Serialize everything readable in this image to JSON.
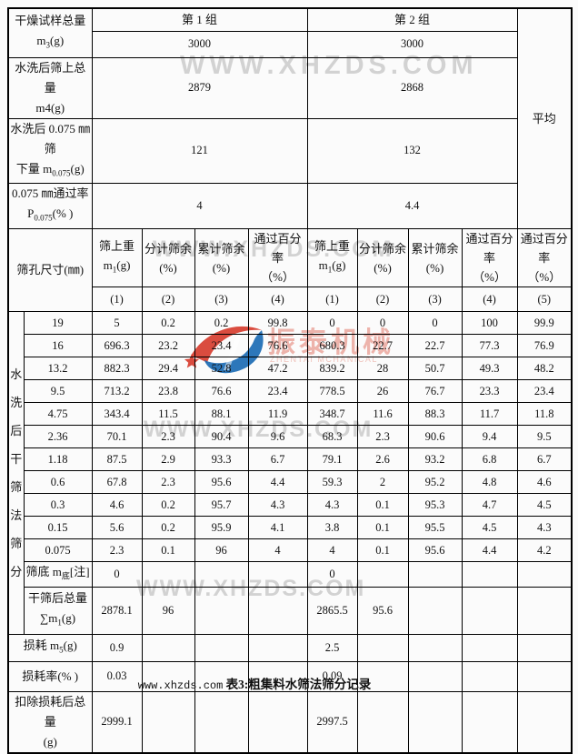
{
  "watermark": {
    "text": "WWW.XHZDS.COM",
    "logo_cn": "振泰机械",
    "logo_en": "ZHENTAI MCHANICAL",
    "gray": "#d2d2d2",
    "logo_red": "#d6382a",
    "logo_blue": "#1668b3",
    "logo_pink": "#edb3ab"
  },
  "caption": {
    "site": "www.xhzds.com",
    "title": "表3:粗集料水筛法筛分记录"
  },
  "summary": {
    "group_headers": [
      "第 1 组",
      "第 2 组"
    ],
    "average_label": "平均",
    "rows": [
      {
        "label": [
          "干燥试样总量",
          "m<sub>3</sub>(g)"
        ],
        "values": [
          "3000",
          "3000"
        ]
      },
      {
        "label": [
          "水洗后筛上总量",
          "m4(g)"
        ],
        "values": [
          "2879",
          "2868"
        ]
      },
      {
        "label": [
          "水洗后 0.075 ㎜筛",
          "下量 m<sub>0.075</sub>(g)"
        ],
        "values": [
          "121",
          "132"
        ]
      },
      {
        "label": [
          "0.075 ㎜通过率",
          "P<sub>0.075</sub>(% )"
        ],
        "values": [
          "4",
          "4.4"
        ]
      }
    ]
  },
  "sieve": {
    "corner_label": "筛孔尺寸(㎜)",
    "side_label": "水洗后干筛法筛分",
    "column_headers": [
      [
        "筛上重",
        "m<sub>1</sub>(g)"
      ],
      [
        "分计筛余",
        "(%)"
      ],
      [
        "累计筛余",
        "(%)"
      ],
      [
        "通过百分率",
        "（%）"
      ],
      [
        "筛上重",
        "m<sub>1</sub>(g)"
      ],
      [
        "分计筛余",
        "(%)"
      ],
      [
        "累计筛余",
        "(%)"
      ],
      [
        "通过百分率",
        "（%）"
      ],
      [
        "通过百分率",
        "（%）"
      ]
    ],
    "column_numbers": [
      "(1)",
      "(2)",
      "(3)",
      "(4)",
      "(1)",
      "(2)",
      "(3)",
      "(4)",
      "(5)"
    ],
    "rows": [
      {
        "size": "19",
        "values": [
          "5",
          "0.2",
          "0.2",
          "99.8",
          "0",
          "0",
          "0",
          "100",
          "99.9"
        ]
      },
      {
        "size": "16",
        "values": [
          "696.3",
          "23.2",
          "23.4",
          "76.6",
          "680.3",
          "22.7",
          "22.7",
          "77.3",
          "76.9"
        ]
      },
      {
        "size": "13.2",
        "values": [
          "882.3",
          "29.4",
          "52.8",
          "47.2",
          "839.2",
          "28",
          "50.7",
          "49.3",
          "48.2"
        ]
      },
      {
        "size": "9.5",
        "values": [
          "713.2",
          "23.8",
          "76.6",
          "23.4",
          "778.5",
          "26",
          "76.7",
          "23.3",
          "23.4"
        ]
      },
      {
        "size": "4.75",
        "values": [
          "343.4",
          "11.5",
          "88.1",
          "11.9",
          "348.7",
          "11.6",
          "88.3",
          "11.7",
          "11.8"
        ]
      },
      {
        "size": "2.36",
        "values": [
          "70.1",
          "2.3",
          "90.4",
          "9.6",
          "68.3",
          "2.3",
          "90.6",
          "9.4",
          "9.5"
        ]
      },
      {
        "size": "1.18",
        "values": [
          "87.5",
          "2.9",
          "93.3",
          "6.7",
          "79.1",
          "2.6",
          "93.2",
          "6.8",
          "6.7"
        ]
      },
      {
        "size": "0.6",
        "values": [
          "67.8",
          "2.3",
          "95.6",
          "4.4",
          "59.3",
          "2",
          "95.2",
          "4.8",
          "4.6"
        ]
      },
      {
        "size": "0.3",
        "values": [
          "4.6",
          "0.2",
          "95.7",
          "4.3",
          "4.3",
          "0.1",
          "95.3",
          "4.7",
          "4.5"
        ]
      },
      {
        "size": "0.15",
        "values": [
          "5.6",
          "0.2",
          "95.9",
          "4.1",
          "3.8",
          "0.1",
          "95.5",
          "4.5",
          "4.3"
        ]
      },
      {
        "size": "0.075",
        "values": [
          "2.3",
          "0.1",
          "96",
          "4",
          "4",
          "0.1",
          "95.6",
          "4.4",
          "4.2"
        ]
      }
    ],
    "bottom_rows": [
      {
        "label": [
          "筛底 m<sub>底</sub>[注]"
        ],
        "in_group": true,
        "values": [
          "0",
          "",
          "",
          "",
          "0",
          "",
          "",
          "",
          ""
        ]
      },
      {
        "label": [
          "干筛后总量",
          "∑m<sub>1</sub>(g)"
        ],
        "in_group": true,
        "values": [
          "2878.1",
          "96",
          "",
          "",
          "2865.5",
          "95.6",
          "",
          "",
          ""
        ]
      },
      {
        "label": [
          "损耗 m<sub>5</sub>(g)"
        ],
        "in_group": false,
        "values": [
          "0.9",
          "",
          "",
          "",
          "2.5",
          "",
          "",
          "",
          ""
        ]
      },
      {
        "label": [
          "损耗率(% )"
        ],
        "in_group": false,
        "values": [
          "0.03",
          "",
          "",
          "",
          "0.09",
          "",
          "",
          "",
          ""
        ]
      },
      {
        "label": [
          "扣除损耗后总量",
          "(g)"
        ],
        "in_group": false,
        "values": [
          "2999.1",
          "",
          "",
          "",
          "2997.5",
          "",
          "",
          "",
          ""
        ]
      }
    ]
  }
}
